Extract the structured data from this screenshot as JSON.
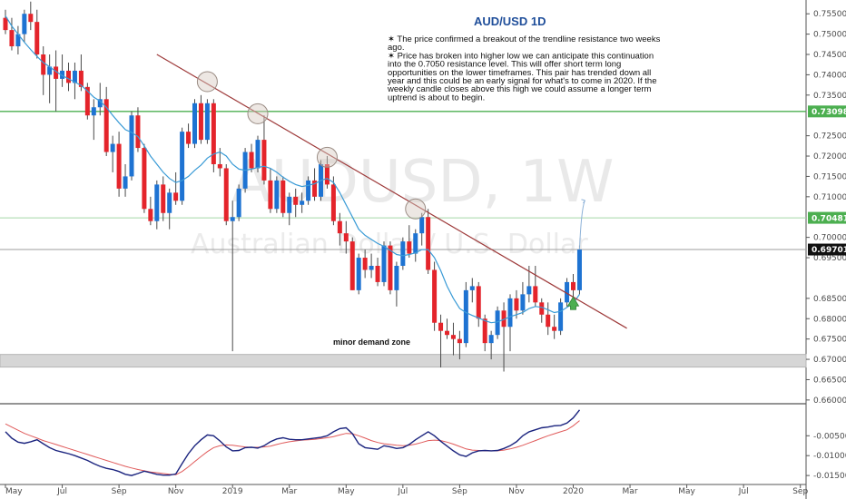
{
  "chart_data": {
    "type": "candlestick",
    "title": "AUD/USD 1D",
    "symbol_watermark": "AUDUSD, 1W",
    "subtitle_watermark": "Australian Dollar / U.S. Dollar",
    "annotation_lines": [
      "✶ The price confirmed a breakout of the trendline resistance two weeks",
      "ago.",
      "✶ Price has broken into higher low we can anticipate this continuation",
      "into the 0.7050 resistance level. This will offer short term long",
      "opportunities on the lower timeframes. This pair has trended down all",
      "year and this could be an early signal for what's to come in 2020. If the",
      "weekly candle closes above this high we could assume a longer term",
      "uptrend is about to begin."
    ],
    "zone_label": "minor demand zone",
    "y_ticks": [
      "0.75500",
      "0.75000",
      "0.74500",
      "0.74000",
      "0.73500",
      "0.72500",
      "0.72000",
      "0.71500",
      "0.71000",
      "0.70000",
      "0.69500",
      "0.68500",
      "0.68000",
      "0.67500",
      "0.67000",
      "0.66500",
      "0.66000"
    ],
    "y_range": [
      0.6593,
      0.7575
    ],
    "x_ticks": [
      {
        "label": "May",
        "i": 0
      },
      {
        "label": "Jul",
        "i": 9
      },
      {
        "label": "Sep",
        "i": 18
      },
      {
        "label": "Nov",
        "i": 27
      },
      {
        "label": "2019",
        "i": 36
      },
      {
        "label": "Mar",
        "i": 45
      },
      {
        "label": "May",
        "i": 54
      },
      {
        "label": "Jul",
        "i": 63
      },
      {
        "label": "Sep",
        "i": 72
      },
      {
        "label": "Nov",
        "i": 81
      },
      {
        "label": "2020",
        "i": 90
      },
      {
        "label": "Mar",
        "i": 99
      },
      {
        "label": "May",
        "i": 108
      },
      {
        "label": "Jul",
        "i": 117
      },
      {
        "label": "Sep",
        "i": 126
      }
    ],
    "price_tags": [
      {
        "label": "0.73098",
        "value": 0.73098,
        "color": "#4caf50"
      },
      {
        "label": "0.70481",
        "value": 0.70481,
        "color": "#4caf50"
      },
      {
        "label": "0.69701",
        "value": 0.69701,
        "color": "#111111"
      }
    ],
    "horizontal_levels": [
      {
        "value": 0.73098,
        "color": "#4caf50"
      },
      {
        "value": 0.70481,
        "color": "#a5d6a7"
      },
      {
        "value": 0.69701,
        "color": "#9e9e9e"
      }
    ],
    "demand_zone": [
      0.6681,
      0.6712
    ],
    "trendline": {
      "from": {
        "i": 24,
        "value": 0.745
      },
      "to": {
        "i": 97,
        "value": 0.679
      }
    },
    "touch_points": [
      {
        "i": 32,
        "value": 0.7383
      },
      {
        "i": 40,
        "value": 0.7304
      },
      {
        "i": 51,
        "value": 0.7197
      },
      {
        "i": 65,
        "value": 0.707
      }
    ],
    "target_value": 0.7091,
    "up_color": "#1e73d2",
    "down_color": "#e4242b",
    "ma_color": "#3a9bd6",
    "trend_color": "#9e3a3a",
    "level_green": "#4caf50",
    "osc_fast_color": "#1a237e",
    "osc_slow_color": "#e05a5a",
    "candles": [
      [
        0.754,
        0.756,
        0.75,
        0.751
      ],
      [
        0.751,
        0.754,
        0.746,
        0.747
      ],
      [
        0.747,
        0.752,
        0.745,
        0.75
      ],
      [
        0.75,
        0.756,
        0.748,
        0.755
      ],
      [
        0.755,
        0.758,
        0.751,
        0.753
      ],
      [
        0.753,
        0.756,
        0.744,
        0.745
      ],
      [
        0.745,
        0.747,
        0.735,
        0.74
      ],
      [
        0.74,
        0.745,
        0.733,
        0.742
      ],
      [
        0.742,
        0.746,
        0.731,
        0.739
      ],
      [
        0.739,
        0.745,
        0.737,
        0.741
      ],
      [
        0.741,
        0.743,
        0.736,
        0.738
      ],
      [
        0.738,
        0.743,
        0.734,
        0.741
      ],
      [
        0.741,
        0.745,
        0.736,
        0.737
      ],
      [
        0.737,
        0.738,
        0.729,
        0.73
      ],
      [
        0.73,
        0.734,
        0.724,
        0.732
      ],
      [
        0.732,
        0.738,
        0.73,
        0.734
      ],
      [
        0.734,
        0.737,
        0.72,
        0.721
      ],
      [
        0.721,
        0.725,
        0.716,
        0.723
      ],
      [
        0.723,
        0.726,
        0.71,
        0.712
      ],
      [
        0.712,
        0.718,
        0.71,
        0.715
      ],
      [
        0.715,
        0.731,
        0.714,
        0.73
      ],
      [
        0.73,
        0.732,
        0.721,
        0.722
      ],
      [
        0.722,
        0.723,
        0.706,
        0.707
      ],
      [
        0.707,
        0.71,
        0.703,
        0.704
      ],
      [
        0.704,
        0.714,
        0.702,
        0.713
      ],
      [
        0.713,
        0.715,
        0.704,
        0.706
      ],
      [
        0.706,
        0.712,
        0.702,
        0.711
      ],
      [
        0.711,
        0.716,
        0.708,
        0.709
      ],
      [
        0.709,
        0.727,
        0.708,
        0.726
      ],
      [
        0.726,
        0.728,
        0.722,
        0.723
      ],
      [
        0.723,
        0.734,
        0.722,
        0.733
      ],
      [
        0.733,
        0.735,
        0.723,
        0.724
      ],
      [
        0.724,
        0.734,
        0.723,
        0.733
      ],
      [
        0.733,
        0.734,
        0.716,
        0.718
      ],
      [
        0.718,
        0.722,
        0.715,
        0.717
      ],
      [
        0.717,
        0.718,
        0.703,
        0.704
      ],
      [
        0.704,
        0.709,
        0.672,
        0.705
      ],
      [
        0.705,
        0.713,
        0.704,
        0.712
      ],
      [
        0.712,
        0.722,
        0.711,
        0.721
      ],
      [
        0.721,
        0.723,
        0.716,
        0.717
      ],
      [
        0.717,
        0.725,
        0.716,
        0.724
      ],
      [
        0.724,
        0.73,
        0.713,
        0.714
      ],
      [
        0.714,
        0.717,
        0.706,
        0.707
      ],
      [
        0.707,
        0.715,
        0.706,
        0.714
      ],
      [
        0.714,
        0.715,
        0.705,
        0.706
      ],
      [
        0.706,
        0.711,
        0.703,
        0.71
      ],
      [
        0.71,
        0.712,
        0.705,
        0.708
      ],
      [
        0.708,
        0.711,
        0.706,
        0.709
      ],
      [
        0.709,
        0.715,
        0.708,
        0.714
      ],
      [
        0.714,
        0.717,
        0.709,
        0.71
      ],
      [
        0.71,
        0.719,
        0.709,
        0.718
      ],
      [
        0.718,
        0.72,
        0.712,
        0.713
      ],
      [
        0.713,
        0.715,
        0.703,
        0.704
      ],
      [
        0.704,
        0.706,
        0.698,
        0.701
      ],
      [
        0.701,
        0.704,
        0.696,
        0.699
      ],
      [
        0.699,
        0.7,
        0.687,
        0.687
      ],
      [
        0.687,
        0.696,
        0.686,
        0.695
      ],
      [
        0.695,
        0.697,
        0.69,
        0.692
      ],
      [
        0.692,
        0.696,
        0.69,
        0.693
      ],
      [
        0.693,
        0.695,
        0.688,
        0.689
      ],
      [
        0.689,
        0.699,
        0.688,
        0.698
      ],
      [
        0.698,
        0.699,
        0.686,
        0.687
      ],
      [
        0.687,
        0.694,
        0.683,
        0.693
      ],
      [
        0.693,
        0.7,
        0.692,
        0.699
      ],
      [
        0.699,
        0.703,
        0.695,
        0.696
      ],
      [
        0.696,
        0.702,
        0.694,
        0.701
      ],
      [
        0.701,
        0.706,
        0.698,
        0.705
      ],
      [
        0.705,
        0.707,
        0.691,
        0.692
      ],
      [
        0.692,
        0.694,
        0.677,
        0.679
      ],
      [
        0.679,
        0.681,
        0.668,
        0.677
      ],
      [
        0.677,
        0.68,
        0.675,
        0.676
      ],
      [
        0.676,
        0.679,
        0.671,
        0.675
      ],
      [
        0.675,
        0.677,
        0.67,
        0.674
      ],
      [
        0.674,
        0.689,
        0.673,
        0.687
      ],
      [
        0.687,
        0.69,
        0.684,
        0.688
      ],
      [
        0.688,
        0.689,
        0.678,
        0.68
      ],
      [
        0.68,
        0.681,
        0.672,
        0.674
      ],
      [
        0.674,
        0.677,
        0.67,
        0.676
      ],
      [
        0.676,
        0.683,
        0.675,
        0.682
      ],
      [
        0.682,
        0.684,
        0.667,
        0.678
      ],
      [
        0.678,
        0.686,
        0.672,
        0.685
      ],
      [
        0.685,
        0.687,
        0.68,
        0.682
      ],
      [
        0.682,
        0.689,
        0.681,
        0.686
      ],
      [
        0.686,
        0.693,
        0.684,
        0.688
      ],
      [
        0.688,
        0.693,
        0.683,
        0.684
      ],
      [
        0.684,
        0.685,
        0.679,
        0.681
      ],
      [
        0.681,
        0.684,
        0.676,
        0.678
      ],
      [
        0.678,
        0.681,
        0.675,
        0.677
      ],
      [
        0.677,
        0.685,
        0.676,
        0.684
      ],
      [
        0.684,
        0.69,
        0.683,
        0.689
      ],
      [
        0.689,
        0.691,
        0.685,
        0.687
      ],
      [
        0.687,
        0.698,
        0.686,
        0.697
      ]
    ],
    "ma": [
      0.7545,
      0.752,
      0.75,
      0.748,
      0.7462,
      0.7445,
      0.743,
      0.742,
      0.7408,
      0.7398,
      0.739,
      0.7382,
      0.7374,
      0.736,
      0.7345,
      0.7335,
      0.732,
      0.73,
      0.7282,
      0.7265,
      0.7258,
      0.7248,
      0.7225,
      0.72,
      0.718,
      0.716,
      0.7145,
      0.7135,
      0.714,
      0.715,
      0.7165,
      0.7178,
      0.7195,
      0.7205,
      0.721,
      0.72,
      0.718,
      0.7168,
      0.7165,
      0.7168,
      0.7172,
      0.7175,
      0.717,
      0.716,
      0.7148,
      0.7138,
      0.713,
      0.7125,
      0.7128,
      0.7132,
      0.714,
      0.7145,
      0.7135,
      0.711,
      0.708,
      0.705,
      0.702,
      0.7005,
      0.6995,
      0.6985,
      0.6978,
      0.6968,
      0.6958,
      0.6955,
      0.6958,
      0.6962,
      0.697,
      0.697,
      0.695,
      0.6918,
      0.688,
      0.685,
      0.6825,
      0.6815,
      0.6808,
      0.6802,
      0.6795,
      0.679,
      0.6792,
      0.6798,
      0.6805,
      0.681,
      0.6815,
      0.6825,
      0.683,
      0.6828,
      0.6822,
      0.6815,
      0.6818,
      0.6828,
      0.6838,
      0.686
    ],
    "osc_y_ticks": [
      "-0.00500",
      "-0.01000",
      "-0.01500"
    ],
    "osc_range": [
      -0.0168,
      0.0026
    ],
    "osc_fast": [
      -0.004,
      -0.0056,
      -0.0066,
      -0.0069,
      -0.0065,
      -0.006,
      -0.007,
      -0.008,
      -0.0087,
      -0.0091,
      -0.0095,
      -0.01,
      -0.0106,
      -0.0112,
      -0.012,
      -0.0127,
      -0.0132,
      -0.0135,
      -0.014,
      -0.0147,
      -0.015,
      -0.0145,
      -0.0139,
      -0.0143,
      -0.0147,
      -0.0149,
      -0.0149,
      -0.0146,
      -0.012,
      -0.0095,
      -0.0075,
      -0.006,
      -0.0048,
      -0.005,
      -0.0063,
      -0.0078,
      -0.0088,
      -0.0087,
      -0.008,
      -0.0079,
      -0.0081,
      -0.0075,
      -0.0065,
      -0.0058,
      -0.0055,
      -0.0059,
      -0.006,
      -0.006,
      -0.0058,
      -0.0056,
      -0.0054,
      -0.005,
      -0.004,
      -0.0032,
      -0.003,
      -0.0045,
      -0.007,
      -0.008,
      -0.0082,
      -0.0084,
      -0.0075,
      -0.0078,
      -0.0082,
      -0.008,
      -0.0072,
      -0.006,
      -0.005,
      -0.004,
      -0.005,
      -0.0064,
      -0.0076,
      -0.0088,
      -0.0098,
      -0.0102,
      -0.0093,
      -0.0088,
      -0.0087,
      -0.0088,
      -0.0087,
      -0.0082,
      -0.0075,
      -0.0065,
      -0.005,
      -0.004,
      -0.0035,
      -0.003,
      -0.0028,
      -0.0025,
      -0.0024,
      -0.0018,
      -0.0005,
      0.0015
    ],
    "osc_slow": [
      -0.002,
      -0.0028,
      -0.0036,
      -0.0044,
      -0.005,
      -0.0056,
      -0.0062,
      -0.0067,
      -0.0072,
      -0.0077,
      -0.0082,
      -0.0087,
      -0.0092,
      -0.0097,
      -0.0102,
      -0.0107,
      -0.0112,
      -0.0117,
      -0.0122,
      -0.0127,
      -0.0131,
      -0.0135,
      -0.0138,
      -0.0141,
      -0.0143,
      -0.0145,
      -0.0147,
      -0.0148,
      -0.014,
      -0.0128,
      -0.0115,
      -0.0102,
      -0.009,
      -0.008,
      -0.0075,
      -0.0073,
      -0.0074,
      -0.0076,
      -0.0078,
      -0.0079,
      -0.0079,
      -0.0078,
      -0.0076,
      -0.0072,
      -0.0068,
      -0.0065,
      -0.0063,
      -0.0061,
      -0.006,
      -0.0059,
      -0.0057,
      -0.0055,
      -0.0052,
      -0.0048,
      -0.0044,
      -0.0045,
      -0.005,
      -0.0056,
      -0.0062,
      -0.0067,
      -0.007,
      -0.0072,
      -0.0074,
      -0.0075,
      -0.0074,
      -0.0071,
      -0.0067,
      -0.0062,
      -0.0061,
      -0.0062,
      -0.0066,
      -0.0071,
      -0.0077,
      -0.0083,
      -0.0086,
      -0.0087,
      -0.0088,
      -0.0088,
      -0.0088,
      -0.0086,
      -0.0083,
      -0.0079,
      -0.0074,
      -0.0068,
      -0.0062,
      -0.0056,
      -0.005,
      -0.0045,
      -0.004,
      -0.0035,
      -0.0025,
      -0.0012
    ]
  }
}
